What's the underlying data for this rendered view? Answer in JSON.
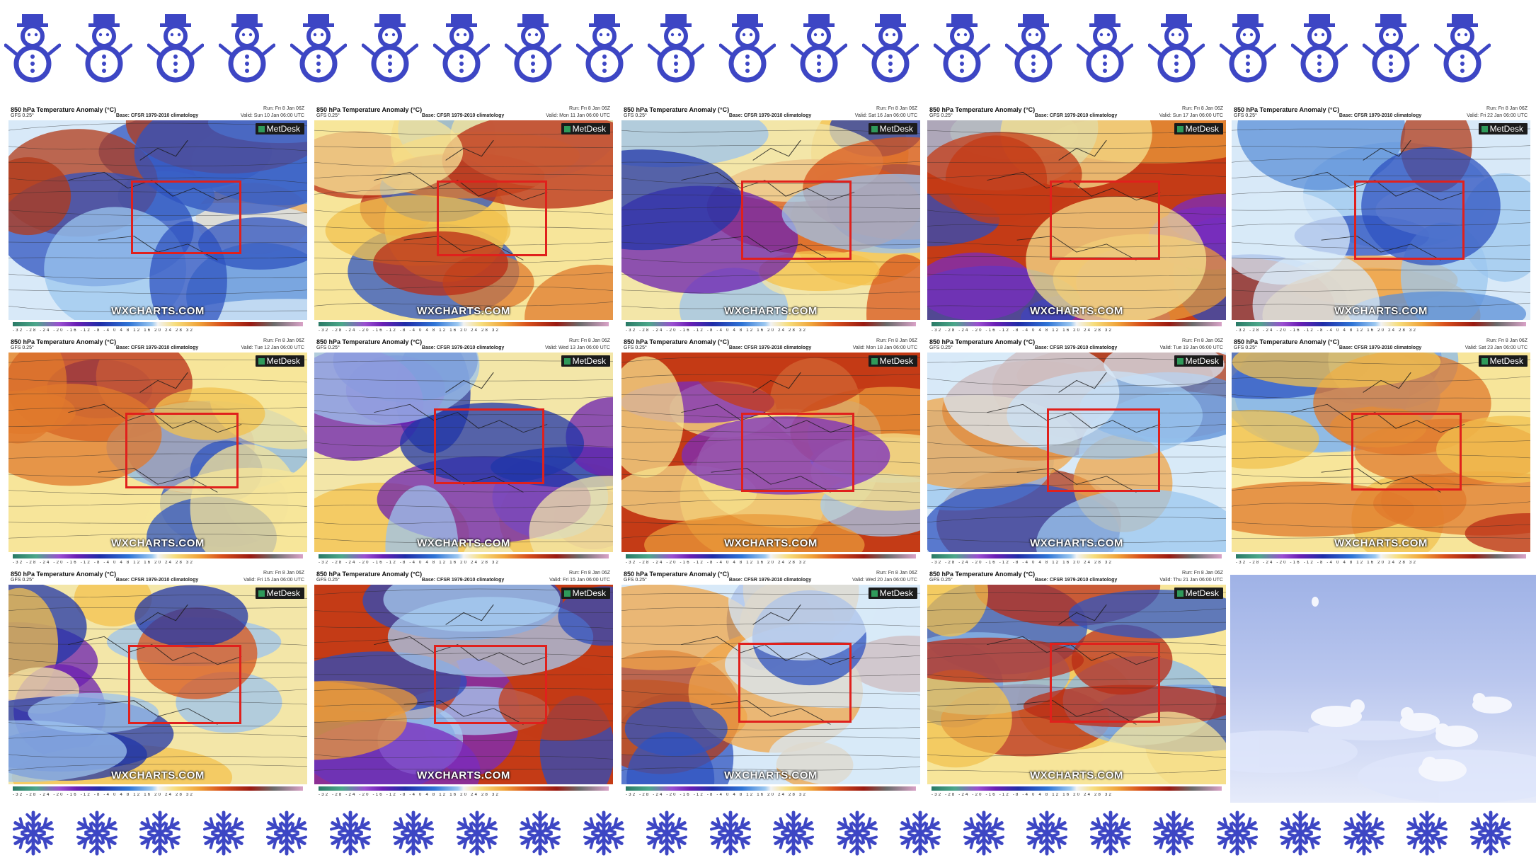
{
  "decor": {
    "top_row_icon": "snowman-icon",
    "bottom_row_icon": "snowflake-icon",
    "icon_color": "#3d46c4"
  },
  "panels": [
    {
      "title": "850 hPa Temperature Anomaly (°C)",
      "model": "GFS 0.25°",
      "base": "Base: CFSR 1979-2010 climatology",
      "run": "Run: Fri 8 Jan 06Z",
      "valid": "Valid: Sun 10 Jan 06:00 UTC",
      "branding": "MetDesk",
      "watermark": "WXCHARTS.COM",
      "scale": "-32 -28 -24 -20 -16 -12 -8 -4 0 4 8 12 16 20 24 28 32"
    },
    {
      "title": "850 hPa Temperature Anomaly (°C)",
      "model": "GFS 0.25°",
      "base": "Base: CFSR 1979-2010 climatology",
      "run": "Run: Fri 8 Jan 06Z",
      "valid": "Valid: Mon 11 Jan 06:00 UTC",
      "branding": "MetDesk",
      "watermark": "WXCHARTS.COM",
      "scale": "-32 -28 -24 -20 -16 -12 -8 -4 0 4 8 12 16 20 24 28 32"
    },
    {
      "title": "850 hPa Temperature Anomaly (°C)",
      "model": "GFS 0.25°",
      "base": "Base: CFSR 1979-2010 climatology",
      "run": "Run: Fri 8 Jan 06Z",
      "valid": "Valid: Sat 16 Jan 06:00 UTC",
      "branding": "MetDesk",
      "watermark": "WXCHARTS.COM",
      "scale": "-32 -28 -24 -20 -16 -12 -8 -4 0 4 8 12 16 20 24 28 32"
    },
    {
      "title": "850 hPa Temperature Anomaly (°C)",
      "model": "GFS 0.25°",
      "base": "Base: CFSR 1979-2010 climatology",
      "run": "Run: Fri 8 Jan 06Z",
      "valid": "Valid: Sun 17 Jan 06:00 UTC",
      "branding": "MetDesk",
      "watermark": "WXCHARTS.COM",
      "scale": "-32 -28 -24 -20 -16 -12 -8 -4 0 4 8 12 16 20 24 28 32"
    },
    {
      "title": "850 hPa Temperature Anomaly (°C)",
      "model": "GFS 0.25°",
      "base": "Base: CFSR 1979-2010 climatology",
      "run": "Run: Fri 8 Jan 06Z",
      "valid": "Valid: Fri 22 Jan 06:00 UTC",
      "branding": "MetDesk",
      "watermark": "WXCHARTS.COM",
      "scale": "-32 -28 -24 -20 -16 -12 -8 -4 0 4 8 12 16 20 24 28 32"
    },
    {
      "title": "850 hPa Temperature Anomaly (°C)",
      "model": "GFS 0.25°",
      "base": "Base: CFSR 1979-2010 climatology",
      "run": "Run: Fri 8 Jan 06Z",
      "valid": "Valid: Tue 12 Jan 06:00 UTC",
      "branding": "MetDesk",
      "watermark": "WXCHARTS.COM",
      "scale": "-32 -28 -24 -20 -16 -12 -8 -4 0 4 8 12 16 20 24 28 32"
    },
    {
      "title": "850 hPa Temperature Anomaly (°C)",
      "model": "GFS 0.25°",
      "base": "Base: CFSR 1979-2010 climatology",
      "run": "Run: Fri 8 Jan 06Z",
      "valid": "Valid: Wed 13 Jan 06:00 UTC",
      "branding": "MetDesk",
      "watermark": "WXCHARTS.COM",
      "scale": "-32 -28 -24 -20 -16 -12 -8 -4 0 4 8 12 16 20 24 28 32"
    },
    {
      "title": "850 hPa Temperature Anomaly (°C)",
      "model": "GFS 0.25°",
      "base": "Base: CFSR 1979-2010 climatology",
      "run": "Run: Fri 8 Jan 06Z",
      "valid": "Valid: Mon 18 Jan 06:00 UTC",
      "branding": "MetDesk",
      "watermark": "WXCHARTS.COM",
      "scale": "-32 -28 -24 -20 -16 -12 -8 -4 0 4 8 12 16 20 24 28 32"
    },
    {
      "title": "850 hPa Temperature Anomaly (°C)",
      "model": "GFS 0.25°",
      "base": "Base: CFSR 1979-2010 climatology",
      "run": "Run: Fri 8 Jan 06Z",
      "valid": "Valid: Tue 19 Jan 06:00 UTC",
      "branding": "MetDesk",
      "watermark": "WXCHARTS.COM",
      "scale": "-32 -28 -24 -20 -16 -12 -8 -4 0 4 8 12 16 20 24 28 32"
    },
    {
      "title": "850 hPa Temperature Anomaly (°C)",
      "model": "GFS 0.25°",
      "base": "Base: CFSR 1979-2010 climatology",
      "run": "Run: Fri 8 Jan 06Z",
      "valid": "Valid: Sat 23 Jan 06:00 UTC",
      "branding": "MetDesk",
      "watermark": "WXCHARTS.COM",
      "scale": "-32 -28 -24 -20 -16 -12 -8 -4 0 4 8 12 16 20 24 28 32"
    },
    {
      "title": "850 hPa Temperature Anomaly (°C)",
      "model": "GFS 0.25°",
      "base": "Base: CFSR 1979-2010 climatology",
      "run": "Run: Fri 8 Jan 06Z",
      "valid": "Valid: Fri 15 Jan 06:00 UTC",
      "branding": "MetDesk",
      "watermark": "WXCHARTS.COM",
      "scale": "-32 -28 -24 -20 -16 -12 -8 -4 0 4 8 12 16 20 24 28 32"
    },
    {
      "title": "850 hPa Temperature Anomaly (°C)",
      "model": "GFS 0.25°",
      "base": "Base: CFSR 1979-2010 climatology",
      "run": "Run: Fri 8 Jan 06Z",
      "valid": "Valid: Fri 15 Jan 06:00 UTC",
      "branding": "MetDesk",
      "watermark": "WXCHARTS.COM",
      "scale": "-32 -28 -24 -20 -16 -12 -8 -4 0 4 8 12 16 20 24 28 32"
    },
    {
      "title": "850 hPa Temperature Anomaly (°C)",
      "model": "GFS 0.25°",
      "base": "Base: CFSR 1979-2010 climatology",
      "run": "Run: Fri 8 Jan 06Z",
      "valid": "Valid: Wed 20 Jan 06:00 UTC",
      "branding": "MetDesk",
      "watermark": "WXCHARTS.COM",
      "scale": "-32 -28 -24 -20 -16 -12 -8 -4 0 4 8 12 16 20 24 28 32"
    },
    {
      "title": "850 hPa Temperature Anomaly (°C)",
      "model": "GFS 0.25°",
      "base": "Base: CFSR 1979-2010 climatology",
      "run": "Run: Fri 8 Jan 06Z",
      "valid": "Valid: Thu 21 Jan 06:00 UTC",
      "branding": "MetDesk",
      "watermark": "WXCHARTS.COM",
      "scale": "-32 -28 -24 -20 -16 -12 -8 -4 0 4 8 12 16 20 24 28 32"
    }
  ],
  "photo": {
    "subject": "arctic-foxes-on-snow"
  }
}
